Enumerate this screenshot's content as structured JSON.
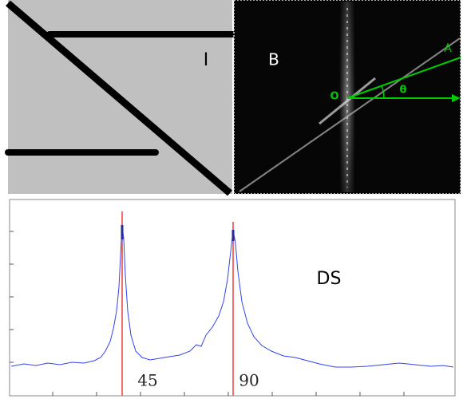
{
  "panels": {
    "image": {
      "label": "I"
    },
    "spectrum": {
      "label": "B",
      "origin": "O",
      "angle": "θ",
      "ray": "A"
    },
    "profile": {
      "label": "DS",
      "peaks": [
        45,
        90
      ]
    }
  }
}
